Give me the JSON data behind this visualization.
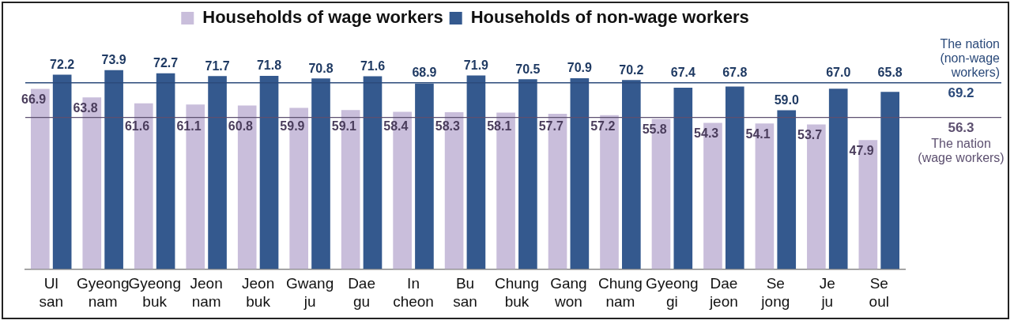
{
  "chart_data": {
    "type": "bar",
    "categories": [
      "Ul\nsan",
      "Gyeong\nnam",
      "Gyeong\nbuk",
      "Jeon\nnam",
      "Jeon\nbuk",
      "Gwang\nju",
      "Dae\ngu",
      "In\ncheon",
      "Bu\nsan",
      "Chung\nbuk",
      "Gang\nwon",
      "Chung\nnam",
      "Gyeong\ngi",
      "Dae\njeon",
      "Se\njong",
      "Je\nju",
      "Se\noul"
    ],
    "series": [
      {
        "name": "Households of wage workers",
        "color": "#c9bedb",
        "values": [
          66.9,
          63.8,
          61.6,
          61.1,
          60.8,
          59.9,
          59.1,
          58.4,
          58.3,
          58.1,
          57.7,
          57.2,
          55.8,
          54.3,
          54.1,
          53.7,
          47.9
        ],
        "value_labels": [
          "66.9",
          "63.8",
          "61.6",
          "61.1",
          "60.8",
          "59.9",
          "59.1",
          "58.4",
          "58.3",
          "58.1",
          "57.7",
          "57.2",
          "55.8",
          "54.3",
          "54.1",
          "53.7",
          "47.9"
        ]
      },
      {
        "name": "Households of non-wage workers",
        "color": "#34598e",
        "values": [
          72.2,
          73.9,
          72.7,
          71.7,
          71.8,
          70.8,
          71.6,
          68.9,
          71.9,
          70.5,
          70.9,
          70.2,
          67.4,
          67.8,
          59.0,
          67.0,
          65.8
        ],
        "value_labels": [
          "72.2",
          "73.9",
          "72.7",
          "71.7",
          "71.8",
          "70.8",
          "71.6",
          "68.9",
          "71.9",
          "70.5",
          "70.9",
          "70.2",
          "67.4",
          "67.8",
          "59.0",
          "67.0",
          "65.8"
        ]
      }
    ],
    "tick_labels": "x",
    "grid": false,
    "legend": "top",
    "annotations": [
      {
        "text": "69.2",
        "y": 69.2
      },
      {
        "text": "56.3",
        "y": 56.3
      }
    ],
    "ref_lines": [
      {
        "axis": "y",
        "value": 69.2,
        "label": "The nation (non-wage workers)",
        "color": "#2b4a7a"
      },
      {
        "axis": "y",
        "value": 56.3,
        "label": "The nation (wage workers)",
        "color": "#5d5070"
      }
    ]
  }
}
